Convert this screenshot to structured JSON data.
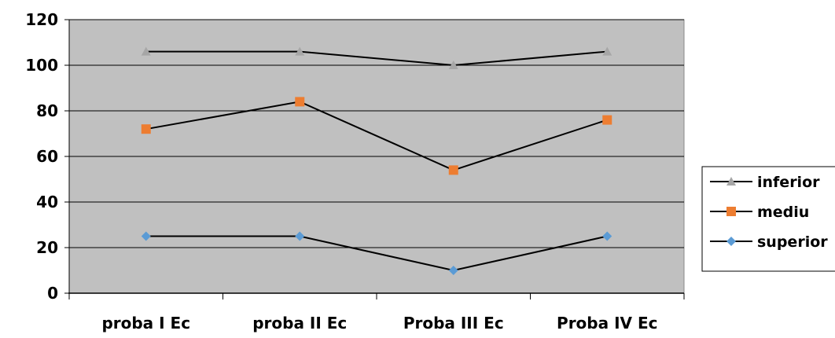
{
  "chart_data": {
    "type": "line",
    "categories": [
      "proba I Ec",
      "proba II Ec",
      "Proba III Ec",
      "Proba IV Ec"
    ],
    "series": [
      {
        "name": "inferior",
        "values": [
          106,
          106,
          100,
          106
        ],
        "marker": "triangle",
        "marker_color": "#a6a6a6"
      },
      {
        "name": "mediu",
        "values": [
          72,
          84,
          54,
          76
        ],
        "marker": "square",
        "marker_color": "#ed7d31"
      },
      {
        "name": "superior",
        "values": [
          25,
          25,
          10,
          25
        ],
        "marker": "diamond",
        "marker_color": "#5b9bd5"
      }
    ],
    "ylim": [
      0,
      120
    ],
    "yticks": [
      0,
      20,
      40,
      60,
      80,
      100,
      120
    ],
    "grid": true,
    "plot_background": "#c0c0c0",
    "line_color": "#000000",
    "legend_position": "right"
  }
}
